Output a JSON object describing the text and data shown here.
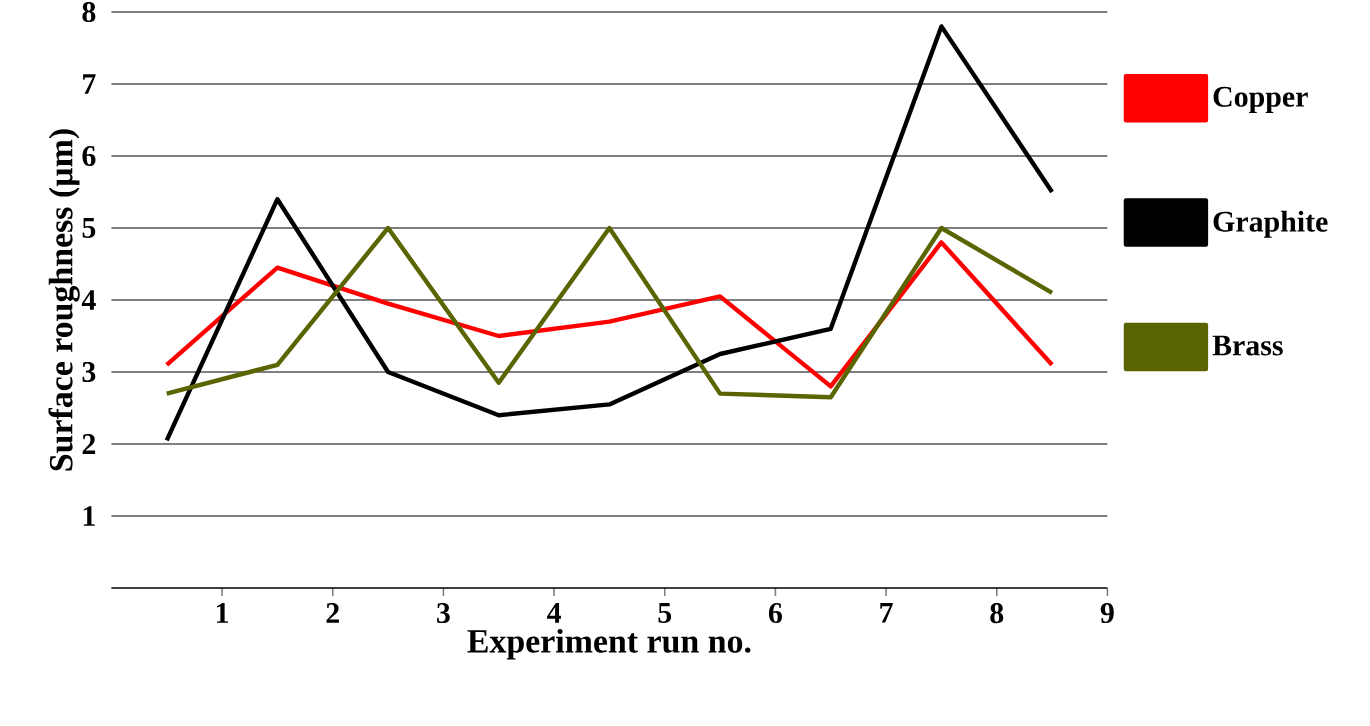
{
  "chart_data": {
    "type": "line",
    "xlabel": "Experiment run no.",
    "ylabel": "Surface roughness (µm)",
    "x": [
      0.5,
      1.5,
      2.5,
      3.5,
      4.5,
      5.5,
      6.5,
      7.5,
      8.5
    ],
    "series": [
      {
        "name": "Copper",
        "color": "#ff0000",
        "values": [
          3.1,
          4.45,
          3.95,
          3.5,
          3.7,
          4.05,
          2.8,
          4.8,
          3.1
        ]
      },
      {
        "name": "Graphite",
        "color": "#000000",
        "values": [
          2.05,
          5.4,
          3.0,
          2.4,
          2.55,
          3.25,
          3.6,
          7.8,
          5.5
        ]
      },
      {
        "name": "Brass",
        "color": "#5a6400",
        "values": [
          2.7,
          3.1,
          5.0,
          2.85,
          5.0,
          2.7,
          2.65,
          5.0,
          4.1
        ]
      }
    ],
    "xlim": [
      0,
      9
    ],
    "xticks": [
      1,
      2,
      3,
      4,
      5,
      6,
      7,
      8,
      9
    ],
    "ylim": [
      0,
      8
    ],
    "yticks": [
      1,
      2,
      3,
      4,
      5,
      6,
      7,
      8
    ],
    "grid": "y",
    "legend": "right",
    "marker": "none",
    "line_style": "solid"
  }
}
